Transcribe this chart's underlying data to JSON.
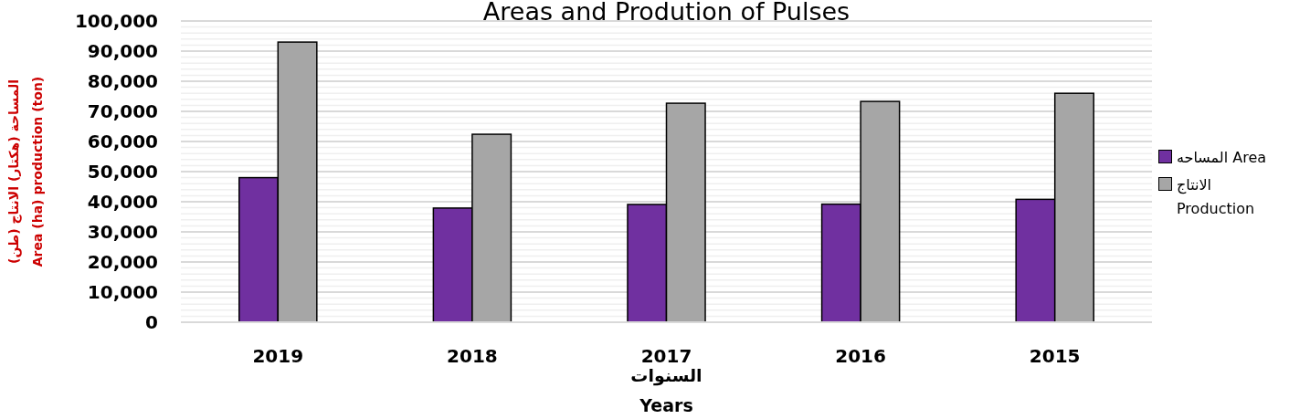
{
  "chart_data": {
    "type": "bar",
    "title": "Areas and Prodution of Pulses",
    "xlabel": "السنوات\nYears",
    "ylabel": "المساحة (هكتار) الانتاج (طن)\nArea (ha) production (ton)",
    "categories": [
      "2019",
      "2018",
      "2017",
      "2016",
      "2015"
    ],
    "series": [
      {
        "name": "المساحه Area",
        "color": "#7030a0",
        "values": [
          48000,
          37900,
          39100,
          39200,
          40800
        ]
      },
      {
        "name": "الانتاج Production",
        "color": "#a6a6a6",
        "values": [
          93000,
          62400,
          72700,
          73300,
          76000
        ]
      }
    ],
    "ylim": [
      0,
      100000
    ],
    "yticks": [
      {
        "value": 0,
        "label": "0"
      },
      {
        "value": 10000,
        "label": "10,000"
      },
      {
        "value": 20000,
        "label": "20,000"
      },
      {
        "value": 30000,
        "label": "30,000"
      },
      {
        "value": 40000,
        "label": "40,000"
      },
      {
        "value": 50000,
        "label": "50,000"
      },
      {
        "value": 60000,
        "label": "60,000"
      },
      {
        "value": 70000,
        "label": "70,000"
      },
      {
        "value": 80000,
        "label": "80,000"
      },
      {
        "value": 90000,
        "label": "90,000"
      },
      {
        "value": 100000,
        "label": "100,000"
      },
      {
        "value": 2000,
        "label": null
      },
      {
        "value": 4000,
        "label": null
      },
      {
        "value": 6000,
        "label": null
      },
      {
        "value": 8000,
        "label": null
      },
      {
        "value": 12000,
        "label": null
      },
      {
        "value": 14000,
        "label": null
      },
      {
        "value": 16000,
        "label": null
      },
      {
        "value": 18000,
        "label": null
      },
      {
        "value": 22000,
        "label": null
      },
      {
        "value": 24000,
        "label": null
      },
      {
        "value": 26000,
        "label": null
      },
      {
        "value": 28000,
        "label": null
      },
      {
        "value": 32000,
        "label": null
      },
      {
        "value": 34000,
        "label": null
      },
      {
        "value": 36000,
        "label": null
      },
      {
        "value": 38000,
        "label": null
      },
      {
        "value": 42000,
        "label": null
      },
      {
        "value": 44000,
        "label": null
      },
      {
        "value": 46000,
        "label": null
      },
      {
        "value": 48000,
        "label": null
      },
      {
        "value": 52000,
        "label": null
      },
      {
        "value": 54000,
        "label": null
      },
      {
        "value": 56000,
        "label": null
      },
      {
        "value": 58000,
        "label": null
      },
      {
        "value": 62000,
        "label": null
      },
      {
        "value": 64000,
        "label": null
      },
      {
        "value": 66000,
        "label": null
      },
      {
        "value": 68000,
        "label": null
      },
      {
        "value": 72000,
        "label": null
      },
      {
        "value": 74000,
        "label": null
      },
      {
        "value": 76000,
        "label": null
      },
      {
        "value": 78000,
        "label": null
      },
      {
        "value": 82000,
        "label": null
      },
      {
        "value": 84000,
        "label": null
      },
      {
        "value": 86000,
        "label": null
      },
      {
        "value": 88000,
        "label": null
      },
      {
        "value": 92000,
        "label": null
      },
      {
        "value": 94000,
        "label": null
      },
      {
        "value": 96000,
        "label": null
      },
      {
        "value": 98000,
        "label": null
      }
    ],
    "grid": "y",
    "legend": "right"
  }
}
